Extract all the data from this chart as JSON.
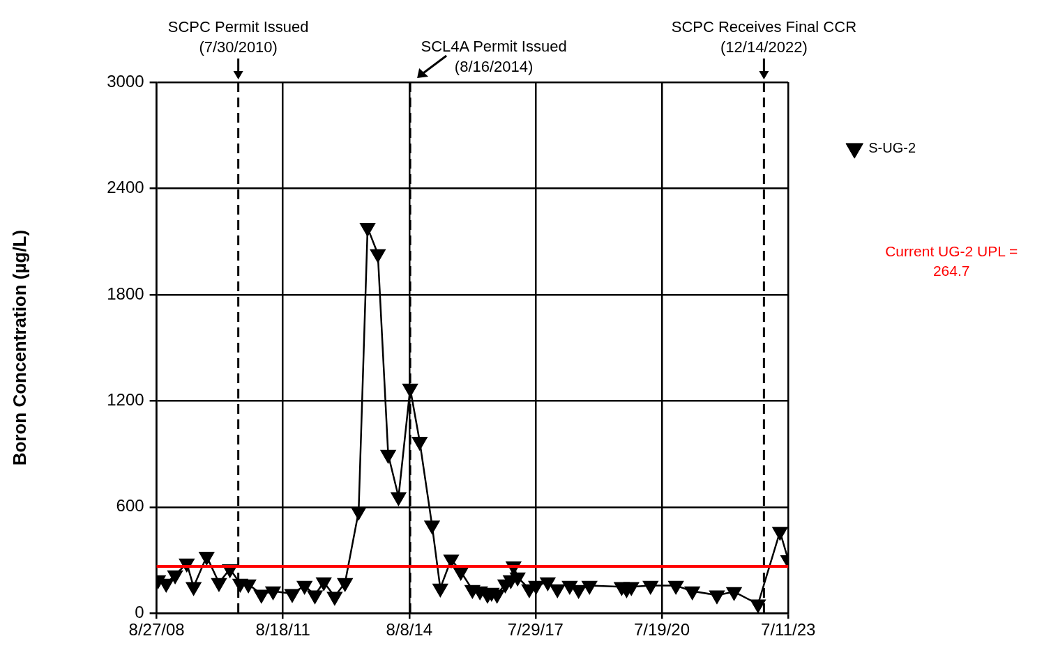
{
  "chart_data": {
    "type": "line",
    "ylabel": "Boron Concentration (µg/L)",
    "x": [
      "2008-09-08",
      "2008-11-17",
      "2009-02-02",
      "2009-05-13",
      "2009-07-11",
      "2009-10-31",
      "2010-02-14",
      "2010-05-19",
      "2010-08-16",
      "2010-10-25",
      "2011-02-14",
      "2011-05-25",
      "2011-11-06",
      "2012-02-20",
      "2012-05-19",
      "2012-08-03",
      "2012-11-05",
      "2013-02-02",
      "2013-05-30",
      "2013-08-15",
      "2013-11-11",
      "2014-02-08",
      "2014-05-08",
      "2014-08-16",
      "2014-11-06",
      "2015-02-20",
      "2015-05-02",
      "2015-08-04",
      "2015-10-25",
      "2016-02-02",
      "2016-04-07",
      "2016-06-11",
      "2016-07-16",
      "2016-09-01",
      "2016-11-11",
      "2016-12-28",
      "2017-01-21",
      "2017-02-25",
      "2017-06-05",
      "2017-08-03",
      "2017-11-11",
      "2018-02-02",
      "2018-05-01",
      "2018-05-19",
      "2018-08-03",
      "2018-11-05",
      "2019-08-09",
      "2019-09-20",
      "2019-10-31",
      "2020-04-13",
      "2020-11-17",
      "2021-04-07",
      "2021-11-05",
      "2022-04-01",
      "2022-10-24",
      "2023-05-01",
      "2023-07-11"
    ],
    "series": [
      {
        "name": "S-UG-2",
        "color": "#000000",
        "values": [
          188,
          168,
          215,
          282,
          149,
          321,
          172,
          250,
          168,
          164,
          106,
          125,
          110,
          156,
          102,
          176,
          94,
          172,
          575,
          2178,
          2030,
          896,
          657,
          1270,
          970,
          497,
          141,
          305,
          235,
          133,
          125,
          106,
          117,
          106,
          164,
          188,
          266,
          203,
          137,
          156,
          176,
          137,
          null,
          156,
          133,
          156,
          149,
          137,
          149,
          156,
          156,
          125,
          102,
          121,
          51,
          461,
          301
        ]
      }
    ],
    "xlim": [
      "2008-08-27",
      "2023-07-11"
    ],
    "xticks": [
      {
        "value": "2008-08-27",
        "label": "8/27/08"
      },
      {
        "value": "2011-08-18",
        "label": "8/18/11"
      },
      {
        "value": "2014-08-08",
        "label": "8/8/14"
      },
      {
        "value": "2017-07-29",
        "label": "7/29/17"
      },
      {
        "value": "2020-07-19",
        "label": "7/19/20"
      },
      {
        "value": "2023-07-11",
        "label": "7/11/23"
      }
    ],
    "ylim": [
      0,
      3000
    ],
    "yticks": [
      0,
      600,
      1200,
      1800,
      2400,
      3000
    ],
    "ref_lines": [
      {
        "axis": "x",
        "value": "2010-07-30",
        "label": "SCPC Permit Issued (7/30/2010)",
        "color": "#000000",
        "line_style": "dashed"
      },
      {
        "axis": "x",
        "value": "2014-08-16",
        "label": "SCL4A Permit Issued (8/16/2014)",
        "color": "#000000",
        "line_style": "dashed"
      },
      {
        "axis": "x",
        "value": "2022-12-14",
        "label": "SCPC Receives Final CCR (12/14/2022)",
        "color": "#000000",
        "line_style": "dashed"
      },
      {
        "axis": "y",
        "value": 264.7,
        "label": "Current UG-2 UPL = 264.7",
        "color": "#ff0000",
        "line_style": "solid"
      }
    ],
    "grid": true,
    "legend": "right",
    "marker": "triangle",
    "line_style": "solid"
  }
}
